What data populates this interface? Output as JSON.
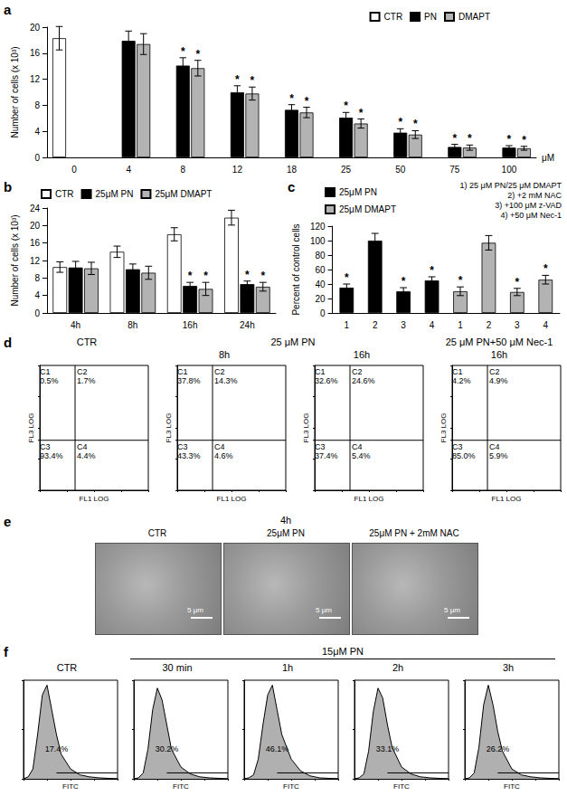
{
  "chart_data": [
    {
      "type": "bar",
      "panel": "a",
      "ylabel": "Number of cells (x 10³)",
      "xlabel": "μM",
      "categories": [
        "0",
        "4",
        "8",
        "12",
        "18",
        "25",
        "50",
        "75",
        "100"
      ],
      "ylim": [
        0,
        20
      ],
      "yticks": [
        0,
        4,
        8,
        12,
        16,
        20
      ],
      "grid": false,
      "legend": "upper right",
      "series": [
        {
          "name": "CTR",
          "color": "#ffffff",
          "values": [
            18.3,
            null,
            null,
            null,
            null,
            null,
            null,
            null,
            null
          ],
          "errors": [
            1.8,
            null,
            null,
            null,
            null,
            null,
            null,
            null,
            null
          ],
          "marks": [
            null,
            null,
            null,
            null,
            null,
            null,
            null,
            null,
            null
          ]
        },
        {
          "name": "PN",
          "color": "#000000",
          "values": [
            null,
            17.9,
            14.1,
            10.0,
            7.3,
            6.1,
            3.8,
            1.6,
            1.5
          ],
          "errors": [
            null,
            1.5,
            1.2,
            1.0,
            0.8,
            0.8,
            0.6,
            0.4,
            0.3
          ],
          "marks": [
            null,
            null,
            "*",
            "*",
            "*",
            "*",
            "*",
            "*",
            "*"
          ]
        },
        {
          "name": "DMAPT",
          "color": "#b3b3b3",
          "values": [
            null,
            17.4,
            13.7,
            9.8,
            6.9,
            5.2,
            3.5,
            1.5,
            1.4
          ],
          "errors": [
            null,
            1.6,
            1.2,
            1.0,
            0.8,
            0.7,
            0.6,
            0.4,
            0.3
          ],
          "marks": [
            null,
            null,
            "*",
            "*",
            "*",
            "*",
            "*",
            "*",
            "*"
          ]
        }
      ]
    },
    {
      "type": "bar",
      "panel": "b",
      "ylabel": "Number of cells (x 10³)",
      "categories": [
        "4h",
        "8h",
        "16h",
        "24h"
      ],
      "ylim": [
        0,
        24
      ],
      "yticks": [
        0,
        4,
        8,
        12,
        16,
        20,
        24
      ],
      "grid": false,
      "legend": "upper left",
      "series": [
        {
          "name": "CTR",
          "color": "#ffffff",
          "values": [
            10.5,
            14.0,
            18.0,
            21.8
          ],
          "errors": [
            1.2,
            1.3,
            1.5,
            1.7
          ],
          "marks": [
            null,
            null,
            null,
            null
          ]
        },
        {
          "name": "25μM PN",
          "color": "#000000",
          "values": [
            10.4,
            10.0,
            6.2,
            6.6
          ],
          "errors": [
            1.4,
            1.2,
            0.8,
            0.7
          ],
          "marks": [
            null,
            null,
            "*",
            "*"
          ]
        },
        {
          "name": "25μM DMAPT",
          "color": "#b3b3b3",
          "values": [
            10.2,
            9.2,
            5.5,
            6.0
          ],
          "errors": [
            1.4,
            1.5,
            1.5,
            1.0
          ],
          "marks": [
            null,
            null,
            "*",
            "*"
          ]
        }
      ]
    },
    {
      "type": "bar",
      "panel": "c",
      "ylabel": "Percent of control cells",
      "categories": [
        "1",
        "2",
        "3",
        "4",
        "1",
        "2",
        "3",
        "4"
      ],
      "ylim": [
        0,
        120
      ],
      "yticks": [
        0,
        20,
        40,
        60,
        80,
        100,
        120
      ],
      "grid": false,
      "legend": "upper left",
      "notes": [
        "1) 25 μM PN/25 μM DMAPT",
        "2) +2 mM NAC",
        "3) +100 μM z-VAD",
        "4) +50 μM Nec-1"
      ],
      "series": [
        {
          "name": "25μM PN",
          "color": "#000000",
          "values": [
            35,
            100,
            30,
            45,
            null,
            null,
            null,
            null
          ],
          "errors": [
            5,
            10,
            5,
            5,
            null,
            null,
            null,
            null
          ],
          "marks": [
            "*",
            null,
            "*",
            "*",
            null,
            null,
            null,
            null
          ]
        },
        {
          "name": "25μM DMAPT",
          "color": "#b3b3b3",
          "values": [
            null,
            null,
            null,
            null,
            30,
            97,
            29,
            46
          ],
          "errors": [
            null,
            null,
            null,
            null,
            6,
            10,
            5,
            6
          ],
          "marks": [
            null,
            null,
            null,
            null,
            "*",
            null,
            "*",
            "*"
          ]
        }
      ]
    },
    {
      "type": "flow_quadrants",
      "panel": "d",
      "group": "CTR",
      "xlabel": "FL1 LOG",
      "ylabel": "FL3 LOG",
      "log": true,
      "xlim": [
        1,
        10000
      ],
      "ylim": [
        1,
        10000
      ],
      "xticks": [
        1,
        10,
        100,
        1000,
        10000
      ],
      "yticks": [
        1,
        10,
        100,
        1000,
        10000
      ],
      "tick_labels": false,
      "gate": [
        20,
        40
      ],
      "quadrants": [
        {
          "name": "C1",
          "value": 0.5,
          "label": "0.5%"
        },
        {
          "name": "C2",
          "value": 1.7,
          "label": "1.7%"
        },
        {
          "name": "C3",
          "value": 93.4,
          "label": "93.4%"
        },
        {
          "name": "C4",
          "value": 4.4,
          "label": "4.4%"
        }
      ]
    },
    {
      "type": "flow_quadrants",
      "group": "25 μM PN",
      "title": "8h",
      "xlabel": "FL1 LOG",
      "ylabel": "FL3 LOG",
      "log": true,
      "xlim": [
        1,
        10000
      ],
      "ylim": [
        1,
        10000
      ],
      "xticks": [
        1,
        10,
        100,
        1000,
        10000
      ],
      "yticks": [
        1,
        10,
        100,
        1000,
        10000
      ],
      "tick_labels": false,
      "gate": [
        20,
        40
      ],
      "quadrants": [
        {
          "name": "C1",
          "value": 37.8,
          "label": "37.8%"
        },
        {
          "name": "C2",
          "value": 14.3,
          "label": "14.3%"
        },
        {
          "name": "C3",
          "value": 43.3,
          "label": "43.3%"
        },
        {
          "name": "C4",
          "value": 4.6,
          "label": "4.6%"
        }
      ]
    },
    {
      "type": "flow_quadrants",
      "group": "25 μM PN",
      "title": "16h",
      "xlabel": "FL1 LOG",
      "ylabel": "FL3 LOG",
      "log": true,
      "xlim": [
        1,
        10000
      ],
      "ylim": [
        1,
        10000
      ],
      "xticks": [
        1,
        10,
        100,
        1000,
        10000
      ],
      "yticks": [
        1,
        10,
        100,
        1000,
        10000
      ],
      "tick_labels": false,
      "gate": [
        20,
        40
      ],
      "quadrants": [
        {
          "name": "C1",
          "value": 32.6,
          "label": "32.6%"
        },
        {
          "name": "C2",
          "value": 24.6,
          "label": "24.6%"
        },
        {
          "name": "C3",
          "value": 37.4,
          "label": "37.4%"
        },
        {
          "name": "C4",
          "value": 5.4,
          "label": "5.4%"
        }
      ]
    },
    {
      "type": "flow_quadrants",
      "group": "25 μM PN+50 μM Nec-1",
      "title": "16h",
      "xlabel": "FL1 LOG",
      "ylabel": "FL3 LOG",
      "log": true,
      "xlim": [
        1,
        10000
      ],
      "ylim": [
        1,
        10000
      ],
      "xticks": [
        1,
        10,
        100,
        1000,
        10000
      ],
      "yticks": [
        1,
        10,
        100,
        1000,
        10000
      ],
      "tick_labels": false,
      "gate": [
        20,
        40
      ],
      "quadrants": [
        {
          "name": "C1",
          "value": 4.2,
          "label": "4.2%"
        },
        {
          "name": "C2",
          "value": 4.9,
          "label": "4.9%"
        },
        {
          "name": "C3",
          "value": 85.0,
          "label": "85.0%"
        },
        {
          "name": "C4",
          "value": 5.9,
          "label": "5.9%"
        }
      ]
    },
    {
      "type": "histogram",
      "panel": "f",
      "title": "CTR",
      "xlabel": "FITC",
      "xlim": [
        0,
        100
      ],
      "ylim": [
        0,
        100
      ],
      "xticks": [
        0,
        25,
        50,
        75,
        100
      ],
      "yticks": [
        0,
        50,
        100
      ],
      "tick_labels": false,
      "color": "#b0b0b0",
      "x": [
        0,
        5,
        10,
        15,
        20,
        25,
        30,
        35,
        40,
        50,
        60,
        70,
        80,
        100
      ],
      "values": [
        0,
        2,
        10,
        45,
        85,
        95,
        70,
        45,
        25,
        10,
        4,
        2,
        1,
        0
      ],
      "gate": {
        "from": 35,
        "to": 100,
        "level": 6
      },
      "gate_percent": 17.4,
      "gate_percent_label": "17.4%"
    },
    {
      "type": "histogram",
      "group": "15μM PN",
      "title": "30 min",
      "xlabel": "FITC",
      "xlim": [
        0,
        100
      ],
      "ylim": [
        0,
        100
      ],
      "xticks": [
        0,
        25,
        50,
        75,
        100
      ],
      "yticks": [
        0,
        50,
        100
      ],
      "tick_labels": false,
      "color": "#b0b0b0",
      "x": [
        0,
        5,
        10,
        15,
        20,
        25,
        30,
        35,
        40,
        50,
        60,
        70,
        80,
        100
      ],
      "values": [
        0,
        1,
        6,
        30,
        70,
        92,
        80,
        55,
        30,
        12,
        5,
        2,
        1,
        0
      ],
      "gate": {
        "from": 35,
        "to": 100,
        "level": 6
      },
      "gate_percent": 30.2,
      "gate_percent_label": "30.2%"
    },
    {
      "type": "histogram",
      "group": "15μM PN",
      "title": "1h",
      "xlabel": "FITC",
      "xlim": [
        0,
        100
      ],
      "ylim": [
        0,
        100
      ],
      "xticks": [
        0,
        25,
        50,
        75,
        100
      ],
      "yticks": [
        0,
        50,
        100
      ],
      "tick_labels": false,
      "color": "#b0b0b0",
      "x": [
        0,
        5,
        10,
        15,
        20,
        25,
        30,
        35,
        40,
        50,
        60,
        70,
        80,
        100
      ],
      "values": [
        0,
        1,
        4,
        20,
        55,
        85,
        95,
        70,
        45,
        20,
        8,
        3,
        1,
        0
      ],
      "gate": {
        "from": 35,
        "to": 100,
        "level": 6
      },
      "gate_percent": 46.1,
      "gate_percent_label": "46.1%"
    },
    {
      "type": "histogram",
      "group": "15μM PN",
      "title": "2h",
      "xlabel": "FITC",
      "xlim": [
        0,
        100
      ],
      "ylim": [
        0,
        100
      ],
      "xticks": [
        0,
        25,
        50,
        75,
        100
      ],
      "yticks": [
        0,
        50,
        100
      ],
      "tick_labels": false,
      "color": "#b0b0b0",
      "x": [
        0,
        5,
        10,
        15,
        20,
        25,
        30,
        35,
        40,
        50,
        60,
        70,
        80,
        100
      ],
      "values": [
        0,
        1,
        5,
        28,
        68,
        92,
        82,
        55,
        32,
        12,
        5,
        2,
        1,
        0
      ],
      "gate": {
        "from": 35,
        "to": 100,
        "level": 6
      },
      "gate_percent": 33.1,
      "gate_percent_label": "33.1%"
    },
    {
      "type": "histogram",
      "group": "15μM PN",
      "title": "3h",
      "xlabel": "FITC",
      "xlim": [
        0,
        100
      ],
      "ylim": [
        0,
        100
      ],
      "xticks": [
        0,
        25,
        50,
        75,
        100
      ],
      "yticks": [
        0,
        50,
        100
      ],
      "tick_labels": false,
      "color": "#b0b0b0",
      "x": [
        0,
        5,
        10,
        15,
        20,
        25,
        30,
        35,
        40,
        50,
        60,
        70,
        80,
        100
      ],
      "values": [
        0,
        1,
        6,
        32,
        75,
        95,
        75,
        48,
        28,
        10,
        4,
        2,
        1,
        0
      ],
      "gate": {
        "from": 35,
        "to": 100,
        "level": 6
      },
      "gate_percent": 26.2,
      "gate_percent_label": "26.2%"
    }
  ],
  "micrographs": {
    "panel": "e",
    "title": "4h",
    "images": [
      {
        "label": "CTR",
        "scale_bar": "5 μm"
      },
      {
        "label": "25μM PN",
        "scale_bar": "5 μm"
      },
      {
        "label": "25μM PN + 2mM NAC",
        "scale_bar": "5 μm"
      }
    ]
  }
}
